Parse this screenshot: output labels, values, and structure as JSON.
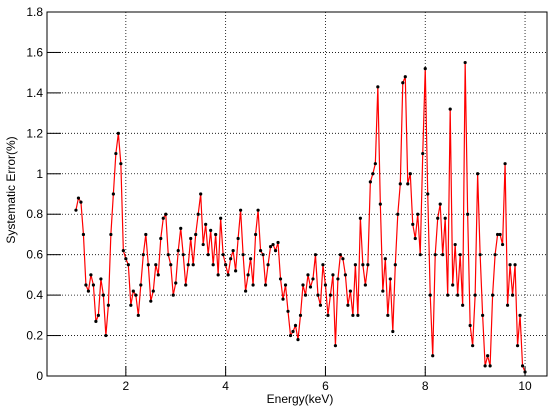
{
  "chart_data": {
    "type": "line",
    "x_label": "Energy(keV)",
    "y_label": "Systematic Error(%)",
    "xlim": [
      0.42,
      10.44
    ],
    "xticks": [
      2,
      4,
      6,
      8,
      10
    ],
    "ylim": [
      0,
      1.8
    ],
    "yticks": [
      0,
      0.2,
      0.4,
      0.6,
      0.8,
      1,
      1.2,
      1.4,
      1.6,
      1.8
    ],
    "grid": true,
    "color": "#ff0000",
    "marker_color": "#000000",
    "x": [
      1.0,
      1.05,
      1.1,
      1.15,
      1.2,
      1.25,
      1.3,
      1.35,
      1.4,
      1.45,
      1.5,
      1.55,
      1.6,
      1.65,
      1.7,
      1.75,
      1.8,
      1.85,
      1.9,
      1.95,
      2.0,
      2.05,
      2.1,
      2.15,
      2.2,
      2.25,
      2.3,
      2.35,
      2.4,
      2.45,
      2.5,
      2.55,
      2.6,
      2.65,
      2.7,
      2.75,
      2.8,
      2.85,
      2.9,
      2.95,
      3.0,
      3.05,
      3.1,
      3.15,
      3.2,
      3.25,
      3.3,
      3.35,
      3.4,
      3.45,
      3.5,
      3.55,
      3.6,
      3.65,
      3.7,
      3.75,
      3.8,
      3.85,
      3.9,
      3.95,
      4.0,
      4.05,
      4.1,
      4.15,
      4.2,
      4.25,
      4.3,
      4.35,
      4.4,
      4.45,
      4.5,
      4.55,
      4.6,
      4.65,
      4.7,
      4.75,
      4.8,
      4.85,
      4.9,
      4.95,
      5.0,
      5.05,
      5.1,
      5.15,
      5.2,
      5.25,
      5.3,
      5.35,
      5.4,
      5.45,
      5.5,
      5.55,
      5.6,
      5.65,
      5.7,
      5.75,
      5.8,
      5.85,
      5.9,
      5.95,
      6.0,
      6.05,
      6.1,
      6.15,
      6.2,
      6.25,
      6.3,
      6.35,
      6.4,
      6.45,
      6.5,
      6.55,
      6.6,
      6.65,
      6.7,
      6.75,
      6.8,
      6.85,
      6.9,
      6.95,
      7.0,
      7.05,
      7.1,
      7.15,
      7.2,
      7.25,
      7.3,
      7.35,
      7.4,
      7.45,
      7.5,
      7.55,
      7.6,
      7.65,
      7.7,
      7.75,
      7.8,
      7.85,
      7.9,
      7.95,
      8.0,
      8.05,
      8.1,
      8.15,
      8.2,
      8.25,
      8.3,
      8.35,
      8.4,
      8.45,
      8.5,
      8.55,
      8.6,
      8.65,
      8.7,
      8.75,
      8.8,
      8.85,
      8.9,
      8.95,
      9.0,
      9.05,
      9.1,
      9.15,
      9.2,
      9.25,
      9.3,
      9.35,
      9.4,
      9.45,
      9.5,
      9.55,
      9.6,
      9.65,
      9.7,
      9.75,
      9.8,
      9.85,
      9.9,
      9.95,
      10.0
    ],
    "values": [
      0.82,
      0.88,
      0.86,
      0.7,
      0.45,
      0.42,
      0.5,
      0.45,
      0.27,
      0.3,
      0.48,
      0.4,
      0.2,
      0.35,
      0.7,
      0.9,
      1.1,
      1.2,
      1.05,
      0.62,
      0.58,
      0.55,
      0.35,
      0.42,
      0.4,
      0.3,
      0.45,
      0.6,
      0.7,
      0.55,
      0.37,
      0.42,
      0.55,
      0.5,
      0.68,
      0.78,
      0.8,
      0.6,
      0.55,
      0.4,
      0.46,
      0.62,
      0.73,
      0.6,
      0.45,
      0.55,
      0.68,
      0.55,
      0.7,
      0.8,
      0.9,
      0.65,
      0.75,
      0.6,
      0.72,
      0.55,
      0.7,
      0.5,
      0.78,
      0.6,
      0.55,
      0.5,
      0.58,
      0.62,
      0.52,
      0.68,
      0.82,
      0.6,
      0.42,
      0.5,
      0.58,
      0.45,
      0.7,
      0.82,
      0.62,
      0.6,
      0.45,
      0.55,
      0.64,
      0.65,
      0.62,
      0.66,
      0.48,
      0.38,
      0.45,
      0.32,
      0.2,
      0.22,
      0.25,
      0.18,
      0.3,
      0.45,
      0.4,
      0.5,
      0.44,
      0.48,
      0.6,
      0.4,
      0.35,
      0.55,
      0.45,
      0.3,
      0.4,
      0.5,
      0.15,
      0.48,
      0.6,
      0.58,
      0.5,
      0.35,
      0.42,
      0.3,
      0.55,
      0.3,
      0.78,
      0.55,
      0.45,
      0.55,
      0.96,
      1.0,
      1.05,
      1.43,
      0.85,
      0.42,
      0.58,
      0.3,
      0.48,
      0.22,
      0.55,
      0.8,
      0.95,
      1.45,
      1.48,
      0.95,
      1.0,
      0.75,
      0.68,
      0.8,
      0.6,
      1.1,
      1.52,
      0.9,
      0.4,
      0.1,
      0.6,
      0.78,
      0.85,
      0.6,
      0.78,
      0.4,
      1.32,
      0.45,
      0.65,
      0.4,
      0.6,
      0.35,
      1.55,
      0.8,
      0.25,
      0.15,
      0.4,
      1.0,
      0.6,
      0.3,
      0.05,
      0.1,
      0.05,
      0.4,
      0.6,
      0.7,
      0.7,
      0.65,
      1.05,
      0.35,
      0.55,
      0.4,
      0.55,
      0.15,
      0.3,
      0.05,
      0.02
    ]
  }
}
